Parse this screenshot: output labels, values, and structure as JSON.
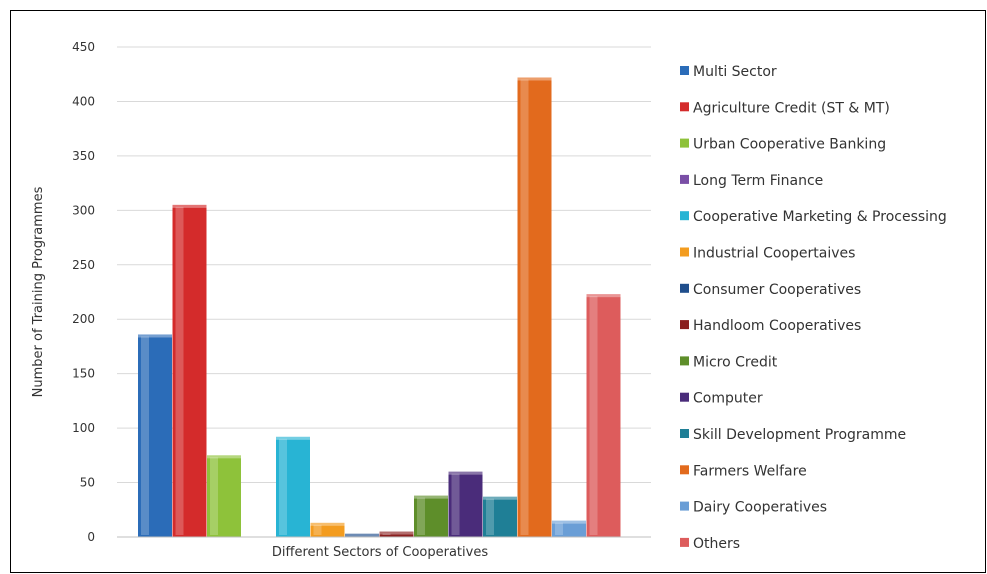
{
  "chart_data": {
    "type": "bar",
    "title": "",
    "xlabel": "Different Sectors of Cooperatives",
    "ylabel": "Number of Training Programmes",
    "ylim": [
      0,
      450
    ],
    "yticks": [
      0,
      50,
      100,
      150,
      200,
      250,
      300,
      350,
      400,
      450
    ],
    "grid": true,
    "legend_position": "right",
    "series": [
      {
        "name": "Multi Sector",
        "value": 186,
        "color": "#2b6cb8"
      },
      {
        "name": "Agriculture Credit (ST & MT)",
        "value": 305,
        "color": "#d42b2b"
      },
      {
        "name": "Urban Cooperative Banking",
        "value": 75,
        "color": "#8ec23a"
      },
      {
        "name": "Long Term Finance",
        "value": 0,
        "color": "#7a4fa6"
      },
      {
        "name": "Cooperative Marketing & Processing",
        "value": 92,
        "color": "#28b4d4"
      },
      {
        "name": "Industrial Coopertaives",
        "value": 13,
        "color": "#f39c1f"
      },
      {
        "name": "Consumer Cooperatives",
        "value": 3,
        "color": "#1f4e8c"
      },
      {
        "name": "Handloom Cooperatives",
        "value": 5,
        "color": "#8a1f1f"
      },
      {
        "name": "Micro Credit",
        "value": 38,
        "color": "#5e8e2a"
      },
      {
        "name": "Computer",
        "value": 60,
        "color": "#4a2c7a"
      },
      {
        "name": "Skill Development Programme",
        "value": 37,
        "color": "#1f7f96"
      },
      {
        "name": "Farmers  Welfare",
        "value": 422,
        "color": "#e26a1d"
      },
      {
        "name": "Dairy Cooperatives",
        "value": 15,
        "color": "#6a9ed6"
      },
      {
        "name": "Others",
        "value": 223,
        "color": "#dd5c5c"
      }
    ]
  }
}
